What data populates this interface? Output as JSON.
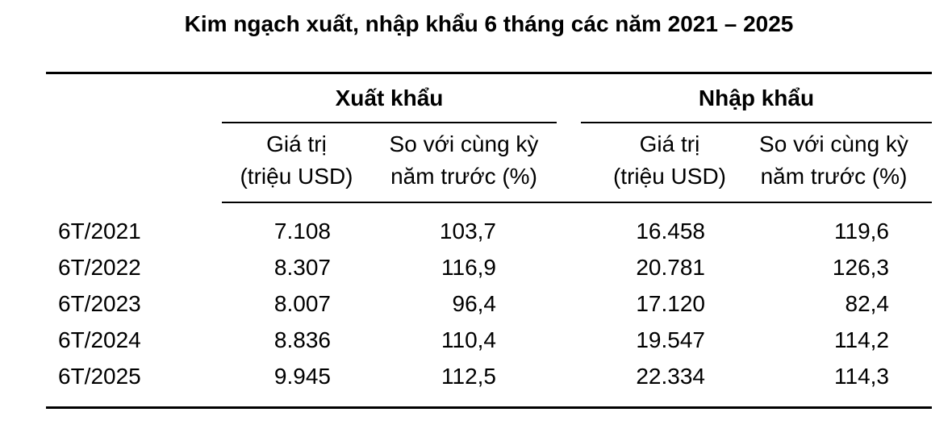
{
  "title": "Kim ngạch xuất, nhập khẩu 6 tháng các năm 2021 – 2025",
  "table": {
    "group_headers": {
      "export": "Xuất khẩu",
      "import": "Nhập khẩu"
    },
    "sub_headers": {
      "value_line1": "Giá trị",
      "value_line2": "(triệu USD)",
      "yoy_line1": "So với cùng kỳ",
      "yoy_line2": "năm trước (%)"
    },
    "rows": [
      {
        "period": "6T/2021",
        "export_value": "7.108",
        "export_yoy": "103,7",
        "import_value": "16.458",
        "import_yoy": "119,6"
      },
      {
        "period": "6T/2022",
        "export_value": "8.307",
        "export_yoy": "116,9",
        "import_value": "20.781",
        "import_yoy": "126,3"
      },
      {
        "period": "6T/2023",
        "export_value": "8.007",
        "export_yoy": "96,4",
        "import_value": "17.120",
        "import_yoy": "82,4"
      },
      {
        "period": "6T/2024",
        "export_value": "8.836",
        "export_yoy": "110,4",
        "import_value": "19.547",
        "import_yoy": "114,2"
      },
      {
        "period": "6T/2025",
        "export_value": "9.945",
        "export_yoy": "112,5",
        "import_value": "22.334",
        "import_yoy": "114,3"
      }
    ]
  },
  "chart_data": {
    "type": "table",
    "title": "Kim ngạch xuất, nhập khẩu 6 tháng các năm 2021 – 2025",
    "categories": [
      "6T/2021",
      "6T/2022",
      "6T/2023",
      "6T/2024",
      "6T/2025"
    ],
    "series": [
      {
        "name": "Xuất khẩu - Giá trị (triệu USD)",
        "values": [
          7108,
          8307,
          8007,
          8836,
          9945
        ]
      },
      {
        "name": "Xuất khẩu - So với cùng kỳ năm trước (%)",
        "values": [
          103.7,
          116.9,
          96.4,
          110.4,
          112.5
        ]
      },
      {
        "name": "Nhập khẩu - Giá trị (triệu USD)",
        "values": [
          16458,
          20781,
          17120,
          19547,
          22334
        ]
      },
      {
        "name": "Nhập khẩu - So với cùng kỳ năm trước (%)",
        "values": [
          119.6,
          126.3,
          82.4,
          114.2,
          114.3
        ]
      }
    ]
  },
  "colors": {
    "text": "#000000",
    "background": "#ffffff",
    "rule": "#000000"
  }
}
